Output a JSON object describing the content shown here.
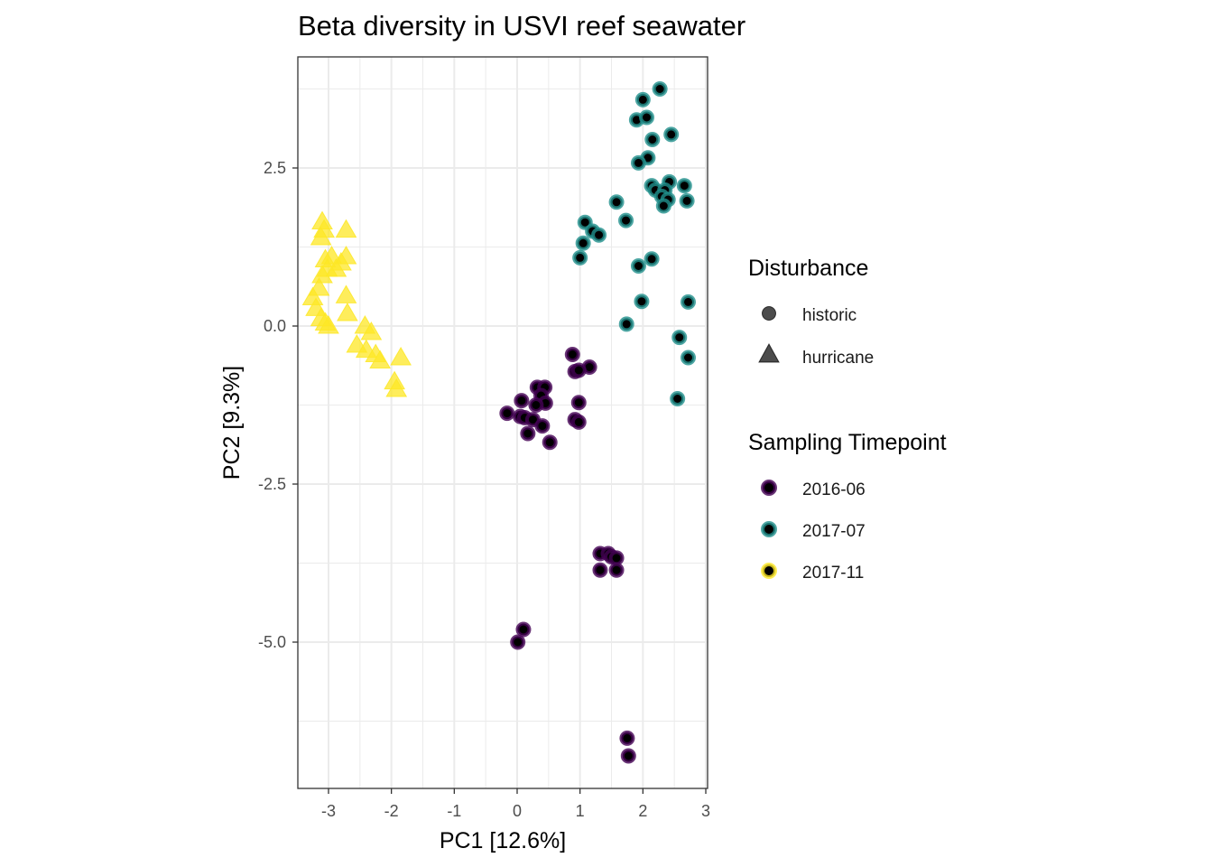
{
  "chart_data": {
    "type": "scatter",
    "title": "Beta diversity in USVI reef seawater",
    "xlabel": "PC1   [12.6%]",
    "ylabel": "PC2   [9.3%]",
    "xlim": [
      -3.5,
      3.05
    ],
    "ylim": [
      -7.3,
      4.2
    ],
    "x_ticks": [
      -3,
      -2,
      -1,
      0,
      1,
      2,
      3
    ],
    "x_tick_labels": [
      "-3",
      "-2",
      "-1",
      "0",
      "1",
      "2",
      "3"
    ],
    "y_ticks": [
      -5.0,
      -2.5,
      0.0,
      2.5
    ],
    "y_tick_labels": [
      "-5.0",
      "-2.5",
      "0.0",
      "2.5"
    ],
    "grid": true,
    "legend_placement": "right",
    "legends": {
      "shape": {
        "title": "Disturbance",
        "entries": [
          {
            "label": "historic",
            "shape": "circle"
          },
          {
            "label": "hurricane",
            "shape": "triangle"
          }
        ]
      },
      "color": {
        "title": "Sampling Timepoint",
        "entries": [
          {
            "label": "2016-06",
            "color": "#440154"
          },
          {
            "label": "2017-07",
            "color": "#21908C"
          },
          {
            "label": "2017-11",
            "color": "#FDE725"
          }
        ]
      }
    },
    "series": [
      {
        "name": "2016-06",
        "shape": "circle",
        "color": "#440154",
        "points": [
          [
            0.88,
            -0.45
          ],
          [
            1.15,
            -0.65
          ],
          [
            0.92,
            -0.72
          ],
          [
            0.98,
            -0.7
          ],
          [
            0.32,
            -0.97
          ],
          [
            0.44,
            -0.97
          ],
          [
            0.38,
            -1.1
          ],
          [
            0.07,
            -1.18
          ],
          [
            0.45,
            -1.22
          ],
          [
            0.98,
            -1.21
          ],
          [
            0.3,
            -1.25
          ],
          [
            -0.16,
            -1.38
          ],
          [
            0.05,
            -1.43
          ],
          [
            0.12,
            -1.45
          ],
          [
            0.25,
            -1.48
          ],
          [
            0.92,
            -1.48
          ],
          [
            0.98,
            -1.52
          ],
          [
            0.4,
            -1.58
          ],
          [
            0.17,
            -1.7
          ],
          [
            0.52,
            -1.84
          ],
          [
            1.32,
            -3.6
          ],
          [
            1.45,
            -3.6
          ],
          [
            1.5,
            -3.65
          ],
          [
            1.58,
            -3.67
          ],
          [
            1.32,
            -3.86
          ],
          [
            1.58,
            -3.86
          ],
          [
            0.1,
            -4.8
          ],
          [
            0.01,
            -5.0
          ],
          [
            1.75,
            -6.52
          ],
          [
            1.77,
            -6.8
          ]
        ]
      },
      {
        "name": "2017-07",
        "shape": "circle",
        "color": "#21908C",
        "points": [
          [
            2.27,
            3.75
          ],
          [
            2.0,
            3.58
          ],
          [
            1.9,
            3.26
          ],
          [
            2.06,
            3.3
          ],
          [
            2.45,
            3.03
          ],
          [
            2.15,
            2.95
          ],
          [
            2.08,
            2.66
          ],
          [
            1.93,
            2.58
          ],
          [
            2.42,
            2.28
          ],
          [
            2.14,
            2.22
          ],
          [
            2.66,
            2.22
          ],
          [
            2.2,
            2.15
          ],
          [
            2.35,
            2.15
          ],
          [
            2.3,
            2.05
          ],
          [
            2.4,
            2.0
          ],
          [
            1.58,
            1.96
          ],
          [
            2.7,
            1.98
          ],
          [
            2.33,
            1.9
          ],
          [
            1.08,
            1.64
          ],
          [
            1.73,
            1.67
          ],
          [
            1.2,
            1.5
          ],
          [
            1.3,
            1.44
          ],
          [
            1.05,
            1.31
          ],
          [
            2.14,
            1.06
          ],
          [
            1.0,
            1.08
          ],
          [
            1.93,
            0.95
          ],
          [
            1.98,
            0.39
          ],
          [
            2.72,
            0.38
          ],
          [
            1.74,
            0.03
          ],
          [
            2.58,
            -0.18
          ],
          [
            2.72,
            -0.5
          ],
          [
            2.55,
            -1.15
          ]
        ]
      },
      {
        "name": "2017-11",
        "shape": "triangle",
        "color": "#FDE725",
        "points": [
          [
            -3.1,
            1.65
          ],
          [
            -3.07,
            1.52
          ],
          [
            -2.72,
            1.52
          ],
          [
            -3.12,
            1.4
          ],
          [
            -2.95,
            1.1
          ],
          [
            -3.05,
            1.05
          ],
          [
            -2.72,
            1.1
          ],
          [
            -2.8,
            1.0
          ],
          [
            -3.02,
            0.9
          ],
          [
            -3.1,
            0.8
          ],
          [
            -2.88,
            0.9
          ],
          [
            -3.15,
            0.6
          ],
          [
            -3.25,
            0.45
          ],
          [
            -2.72,
            0.48
          ],
          [
            -3.2,
            0.28
          ],
          [
            -2.7,
            0.2
          ],
          [
            -3.12,
            0.12
          ],
          [
            -3.05,
            0.05
          ],
          [
            -3.0,
            0.0
          ],
          [
            -2.42,
            0.0
          ],
          [
            -2.32,
            -0.1
          ],
          [
            -2.55,
            -0.3
          ],
          [
            -2.4,
            -0.38
          ],
          [
            -2.25,
            -0.45
          ],
          [
            -2.18,
            -0.55
          ],
          [
            -1.85,
            -0.5
          ],
          [
            -1.95,
            -0.88
          ],
          [
            -1.92,
            -1.0
          ]
        ]
      }
    ]
  }
}
